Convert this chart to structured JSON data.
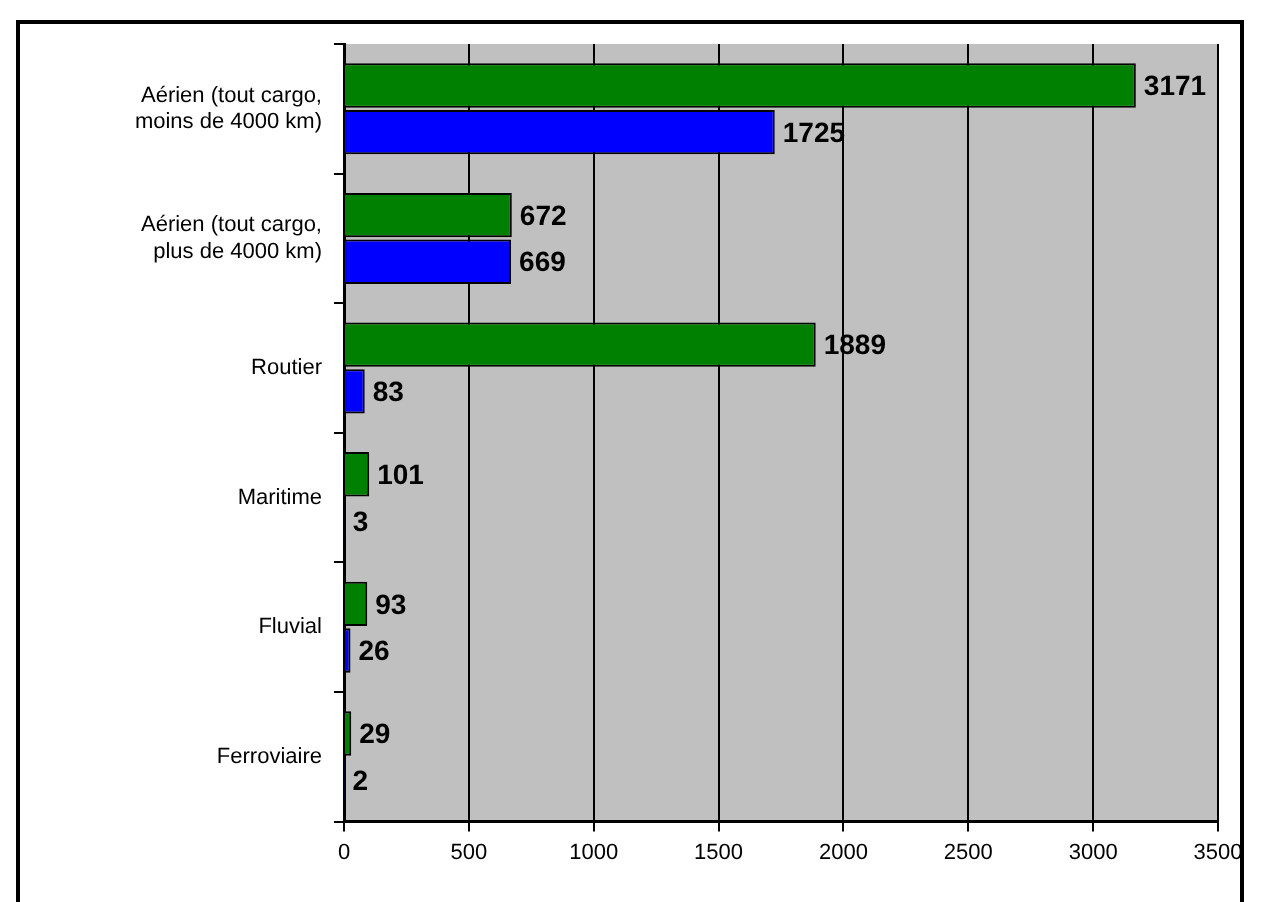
{
  "chart_data": {
    "type": "bar",
    "orientation": "horizontal",
    "categories": [
      "Aérien (tout cargo, moins de 4000 km)",
      "Aérien (tout cargo, plus de 4000 km)",
      "Routier",
      "Maritime",
      "Fluvial",
      "Ferroviaire"
    ],
    "series": [
      {
        "color": "#008000",
        "values": [
          3171,
          672,
          1889,
          101,
          93,
          29
        ]
      },
      {
        "color": "#0000ff",
        "values": [
          1725,
          669,
          83,
          3,
          26,
          2
        ]
      }
    ],
    "xlim": [
      0,
      3500
    ],
    "xticks": [
      0,
      500,
      1000,
      1500,
      2000,
      2500,
      3000,
      3500
    ],
    "grid": "x",
    "legend": false,
    "data_labels": true
  }
}
